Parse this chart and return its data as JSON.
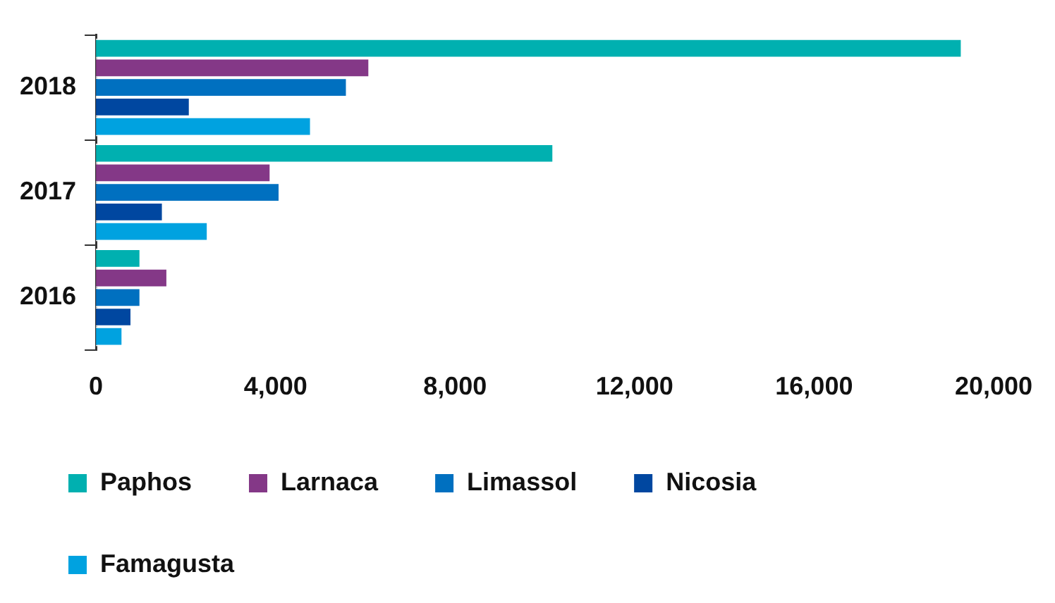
{
  "chart_data": {
    "type": "bar",
    "orientation": "horizontal",
    "categories": [
      "2018",
      "2017",
      "2016"
    ],
    "series": [
      {
        "name": "Paphos",
        "color": "#00b0b0",
        "values": [
          19300,
          10200,
          1000
        ]
      },
      {
        "name": "Larnaca",
        "color": "#843887",
        "values": [
          6100,
          3900,
          1600
        ]
      },
      {
        "name": "Limassol",
        "color": "#0070c0",
        "values": [
          5600,
          4100,
          1000
        ]
      },
      {
        "name": "Nicosia",
        "color": "#0047a0",
        "values": [
          2100,
          1500,
          800
        ]
      },
      {
        "name": "Famagusta",
        "color": "#00a2e0",
        "values": [
          4800,
          2500,
          600
        ]
      }
    ],
    "xlim": [
      0,
      20000
    ],
    "xticks": [
      {
        "value": 0,
        "label": "0"
      },
      {
        "value": 4000,
        "label": "4,000"
      },
      {
        "value": 8000,
        "label": "8,000"
      },
      {
        "value": 12000,
        "label": "12,000"
      },
      {
        "value": 16000,
        "label": "16,000"
      },
      {
        "value": 20000,
        "label": "20,000"
      }
    ],
    "grid": false,
    "legend": "bottom"
  }
}
